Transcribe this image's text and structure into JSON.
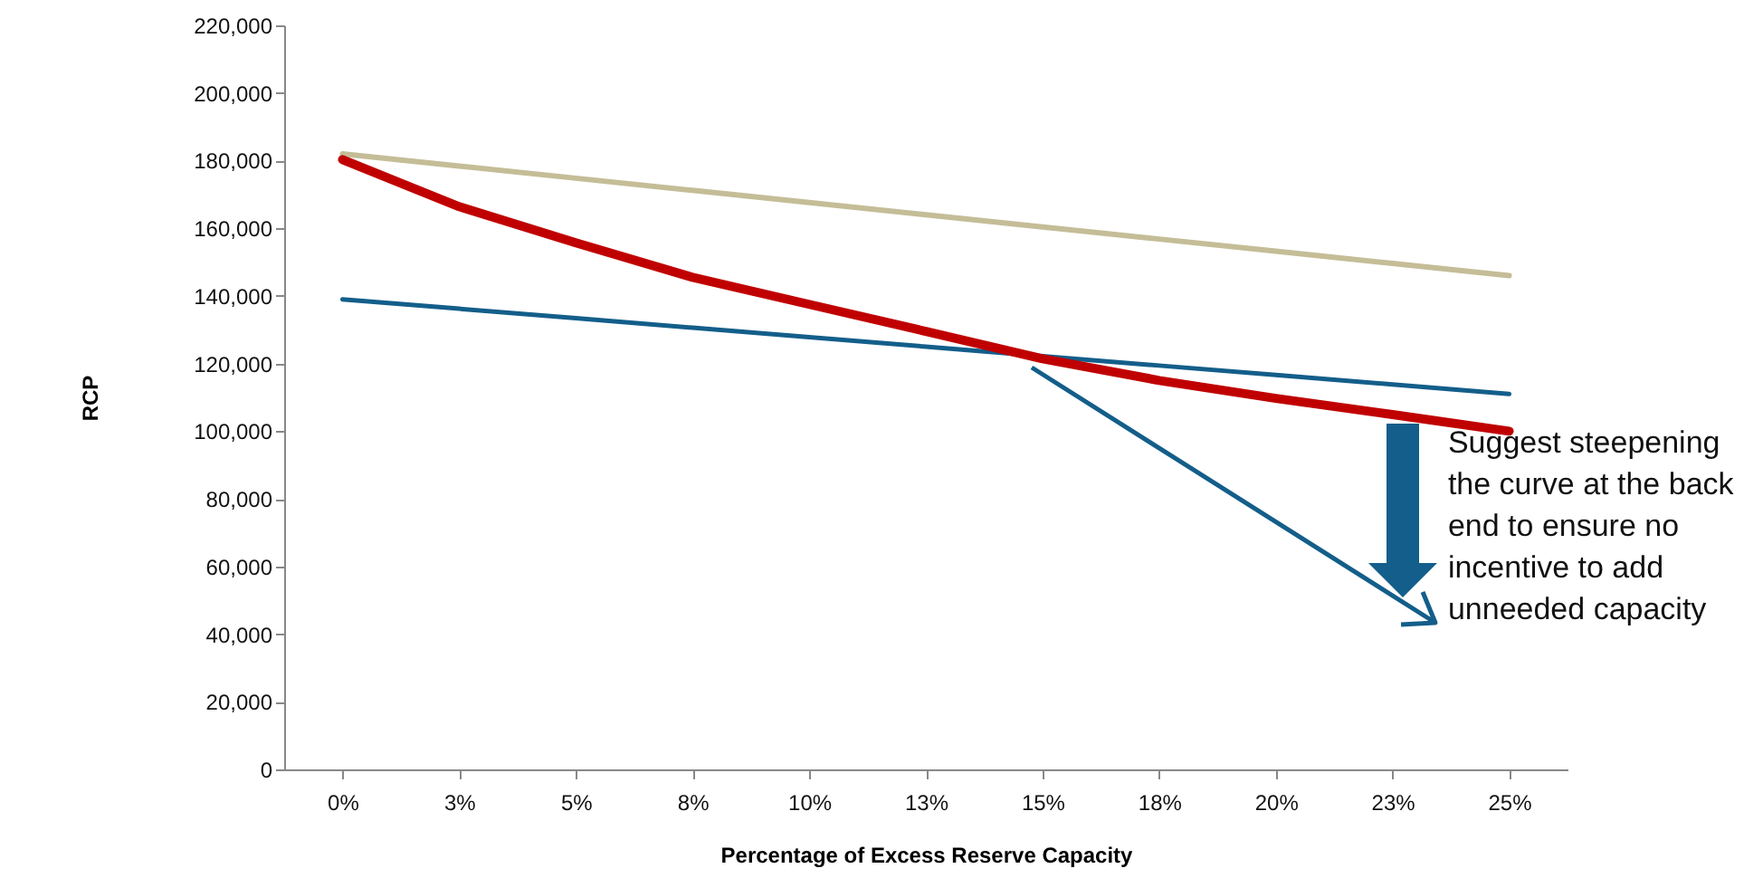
{
  "chart_data": {
    "type": "line",
    "xlabel": "Percentage of Excess Reserve Capacity",
    "ylabel": "RCP",
    "categories": [
      "0%",
      "3%",
      "5%",
      "8%",
      "10%",
      "13%",
      "15%",
      "18%",
      "20%",
      "23%",
      "25%"
    ],
    "series": [
      {
        "color": "#c4bd97",
        "values": [
          182000,
          178400,
          174800,
          171200,
          167600,
          164000,
          160400,
          156800,
          153200,
          149600,
          146000
        ]
      },
      {
        "color": "#135e8a",
        "values": [
          139000,
          136200,
          133400,
          130600,
          127800,
          125000,
          122200,
          119400,
          116600,
          113800,
          111000
        ]
      },
      {
        "color": "#c00000",
        "values": [
          180300,
          166400,
          155700,
          145500,
          137500,
          129500,
          121400,
          115000,
          109700,
          104900,
          100000
        ]
      }
    ],
    "ylim": [
      0,
      220000
    ],
    "yticks": [
      0,
      {
        "value": 20000,
        "label": "20,000"
      },
      {
        "value": 40000,
        "label": "40,000"
      },
      {
        "value": 60000,
        "label": "60,000"
      },
      {
        "value": 80000,
        "label": "80,000"
      },
      {
        "value": 100000,
        "label": "100,000"
      },
      {
        "value": 120000,
        "label": "120,000"
      },
      {
        "value": 140000,
        "label": "140,000"
      },
      {
        "value": 160000,
        "label": "160,000"
      },
      {
        "value": 180000,
        "label": "180,000"
      },
      {
        "value": 200000,
        "label": "200,000"
      },
      {
        "value": 220000,
        "label": "220,000"
      }
    ],
    "grid": false,
    "annotations": [
      {
        "text": "Suggest steepening the curve at the back end to ensure no incentive to add unneeded capacity",
        "x": "15%",
        "y": 121400
      }
    ]
  }
}
